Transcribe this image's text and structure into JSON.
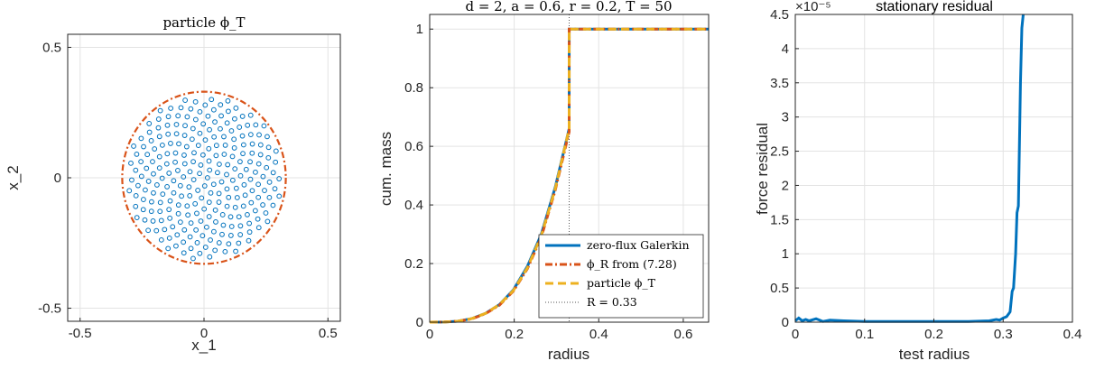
{
  "colors": {
    "blue": "#0072BD",
    "orange": "#D95319",
    "yellow": "#EDB120",
    "grid": "#e3e3e3",
    "axis": "#262626"
  },
  "chart_data": [
    {
      "type": "scatter",
      "title": "particle ϕ_T",
      "xlabel": "x_1",
      "ylabel": "x_2",
      "xlim": [
        -0.55,
        0.55
      ],
      "ylim": [
        -0.55,
        0.55
      ],
      "xticks": [
        -0.5,
        0,
        0.5
      ],
      "xtick_labels": [
        "-0.5",
        "0",
        "0.5"
      ],
      "yticks": [
        -0.5,
        0,
        0.5
      ],
      "ytick_labels": [
        "-0.5",
        "0",
        "0.5"
      ],
      "grid": true,
      "circle_radius": 0.33,
      "particle_count": 250,
      "particle_marker": "open-circle"
    },
    {
      "type": "line",
      "title": "d = 2, a = 0.6, r = 0.2, T = 50",
      "xlabel": "radius",
      "ylabel": "cum. mass",
      "xlim": [
        0,
        0.66
      ],
      "ylim": [
        0,
        1.05
      ],
      "xticks": [
        0,
        0.2,
        0.4,
        0.6
      ],
      "xtick_labels": [
        "0",
        "0.2",
        "0.4",
        "0.6"
      ],
      "yticks": [
        0,
        0.2,
        0.4,
        0.6,
        0.8,
        1
      ],
      "ytick_labels": [
        "0",
        "0.2",
        "0.4",
        "0.6",
        "0.8",
        "1"
      ],
      "grid": true,
      "legend_position": "bottom-right",
      "x": [
        0,
        0.033,
        0.066,
        0.099,
        0.132,
        0.165,
        0.198,
        0.231,
        0.264,
        0.297,
        0.33,
        0.3301,
        0.66
      ],
      "series": [
        {
          "name": "zero-flux Galerkin",
          "style": "solid",
          "values": [
            0,
            0.0004,
            0.003,
            0.012,
            0.03,
            0.06,
            0.11,
            0.19,
            0.3,
            0.46,
            0.66,
            1,
            1
          ]
        },
        {
          "name": "ϕ_R from (7.28)",
          "style": "dashdot",
          "values": [
            0,
            0.0005,
            0.0032,
            0.011,
            0.029,
            0.058,
            0.106,
            0.182,
            0.29,
            0.45,
            0.65,
            1,
            1
          ]
        },
        {
          "name": "particle ϕ_T",
          "style": "dashed",
          "values": [
            0,
            0.0004,
            0.003,
            0.012,
            0.03,
            0.06,
            0.108,
            0.185,
            0.295,
            0.455,
            0.66,
            1,
            1
          ]
        }
      ],
      "reference_line": {
        "name": "R = 0.33",
        "x": 0.33,
        "style": "dotted"
      }
    },
    {
      "type": "line",
      "title": "stationary residual",
      "xlabel": "test radius",
      "ylabel": "force residual",
      "exponent_label": "×10⁻⁵",
      "xlim": [
        0,
        0.4
      ],
      "ylim": [
        0,
        4.5
      ],
      "xticks": [
        0,
        0.1,
        0.2,
        0.3,
        0.4
      ],
      "xtick_labels": [
        "0",
        "0.1",
        "0.2",
        "0.3",
        "0.4"
      ],
      "yticks": [
        0,
        0.5,
        1,
        1.5,
        2,
        2.5,
        3,
        3.5,
        4,
        4.5
      ],
      "ytick_labels": [
        "0",
        "0.5",
        "1",
        "1.5",
        "2",
        "2.5",
        "3",
        "3.5",
        "4",
        "4.5"
      ],
      "grid": true,
      "series": [
        {
          "x": [
            0,
            0.005,
            0.01,
            0.015,
            0.02,
            0.03,
            0.04,
            0.05,
            0.07,
            0.1,
            0.15,
            0.2,
            0.25,
            0.28,
            0.29,
            0.295,
            0.3,
            0.305,
            0.31,
            0.313,
            0.315,
            0.318,
            0.32,
            0.322,
            0.325,
            0.327,
            0.329
          ],
          "values": [
            0.02,
            0.06,
            0.02,
            0.04,
            0.02,
            0.05,
            0.01,
            0.03,
            0.02,
            0.01,
            0.01,
            0.01,
            0.01,
            0.02,
            0.04,
            0.03,
            0.06,
            0.08,
            0.15,
            0.45,
            0.5,
            1.0,
            1.6,
            1.7,
            3.5,
            4.3,
            4.5
          ]
        }
      ]
    }
  ]
}
